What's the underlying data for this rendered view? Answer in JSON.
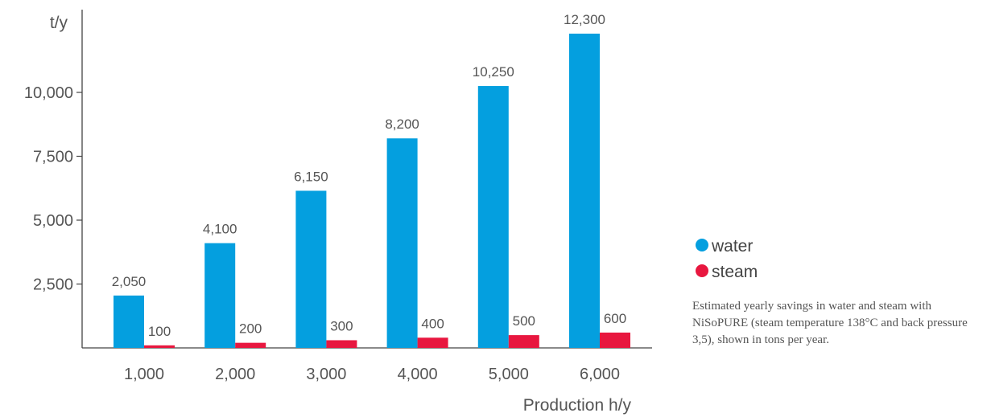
{
  "chart_data": {
    "type": "bar",
    "categories": [
      "1,000",
      "2,000",
      "3,000",
      "4,000",
      "5,000",
      "6,000"
    ],
    "series": [
      {
        "name": "water",
        "color": "#049FDF",
        "values": [
          2050,
          4100,
          6150,
          8200,
          10250,
          12300
        ],
        "labels": [
          "2,050",
          "4,100",
          "6,150",
          "8,200",
          "10,250",
          "12,300"
        ]
      },
      {
        "name": "steam",
        "color": "#E8173F",
        "values": [
          100,
          200,
          300,
          400,
          500,
          600
        ],
        "labels": [
          "100",
          "200",
          "300",
          "400",
          "500",
          "600"
        ]
      }
    ],
    "ylabel": "t/y",
    "xlabel": "Production h/y",
    "ylim": [
      0,
      12500
    ],
    "yticks": [
      2500,
      5000,
      7500,
      10000
    ],
    "ytick_labels": [
      "2,500",
      "5,000",
      "7,500",
      "10,000"
    ],
    "grid": false,
    "legend_position": "right"
  },
  "note": "Estimated yearly savings in water and steam with NiSoPURE (steam temperature 138°C and back pressure 3,5), shown in tons per year."
}
